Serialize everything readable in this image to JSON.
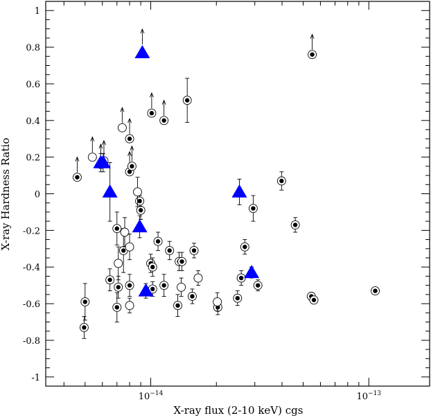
{
  "chart_data": {
    "type": "scatter",
    "title": "",
    "xlabel": "X-ray flux (2-10 keV) cgs",
    "ylabel": "X-ray Hardness Ratio",
    "x_scale": "log",
    "xlim": [
      3.3e-15,
      1.9e-13
    ],
    "ylim": [
      -1.05,
      1.05
    ],
    "x_major_ticks": [
      {
        "value": 1e-14,
        "base": "10",
        "exp": "−14"
      },
      {
        "value": 1e-13,
        "base": "10",
        "exp": "−13"
      }
    ],
    "y_ticks": [
      {
        "value": -1,
        "label": "-1"
      },
      {
        "value": -0.8,
        "label": "-0.8"
      },
      {
        "value": -0.6,
        "label": "-0.6"
      },
      {
        "value": -0.4,
        "label": "-0.4"
      },
      {
        "value": -0.2,
        "label": "-0.2"
      },
      {
        "value": 0,
        "label": "0"
      },
      {
        "value": 0.2,
        "label": "0.2"
      },
      {
        "value": 0.4,
        "label": "0.4"
      },
      {
        "value": 0.6,
        "label": "0.6"
      },
      {
        "value": 0.8,
        "label": "0.8"
      },
      {
        "value": 1,
        "label": "1"
      }
    ],
    "grid": false,
    "series": [
      {
        "name": "circled-dot",
        "marker": "circle-dot",
        "color": "#000000",
        "points": [
          {
            "x": 4.6e-15,
            "y": 0.09,
            "lower_limit": true
          },
          {
            "x": 5.9e-15,
            "y": 0.16,
            "lower_limit": true
          },
          {
            "x": 6.1e-15,
            "y": 0.18,
            "lower_limit": true
          },
          {
            "x": 8e-15,
            "y": 0.3,
            "lower_limit": true
          },
          {
            "x": 8e-15,
            "y": 0.12,
            "lower_limit": true
          },
          {
            "x": 8.2e-15,
            "y": 0.15,
            "lower_limit": true
          },
          {
            "x": 1.01e-14,
            "y": 0.44,
            "lower_limit": true
          },
          {
            "x": 1.15e-14,
            "y": 0.4,
            "lower_limit": true
          },
          {
            "x": 5.5e-14,
            "y": 0.76,
            "lower_limit": true
          },
          {
            "x": 1.47e-14,
            "y": 0.51,
            "err": 0.12
          },
          {
            "x": 3.98e-14,
            "y": 0.07,
            "err": 0.05
          },
          {
            "x": 2.95e-14,
            "y": -0.08,
            "err": 0.07
          },
          {
            "x": 4.6e-14,
            "y": -0.17,
            "err": 0.04
          },
          {
            "x": 9e-15,
            "y": -0.09,
            "err": 0.05
          },
          {
            "x": 7e-15,
            "y": -0.19,
            "err": 0.09
          },
          {
            "x": 7.5e-15,
            "y": -0.31,
            "err": 0.12
          },
          {
            "x": 1.08e-14,
            "y": -0.26,
            "err": 0.05
          },
          {
            "x": 1.22e-14,
            "y": -0.31,
            "err": 0.05
          },
          {
            "x": 1.58e-14,
            "y": -0.31,
            "err": 0.04
          },
          {
            "x": 2.7e-14,
            "y": -0.29,
            "err": 0.04
          },
          {
            "x": 1e-14,
            "y": -0.38,
            "err": 0.05
          },
          {
            "x": 1.02e-14,
            "y": -0.4,
            "err": 0.05
          },
          {
            "x": 1.35e-14,
            "y": -0.37,
            "err": 0.05
          },
          {
            "x": 1.39e-14,
            "y": -0.37,
            "err": 0.05
          },
          {
            "x": 6.5e-15,
            "y": -0.47,
            "err": 0.06
          },
          {
            "x": 7.1e-15,
            "y": -0.51,
            "err": 0.06
          },
          {
            "x": 8e-15,
            "y": -0.5,
            "err": 0.06
          },
          {
            "x": 1.02e-14,
            "y": -0.52,
            "err": 0.04
          },
          {
            "x": 1.15e-14,
            "y": -0.5,
            "err": 0.06
          },
          {
            "x": 1.55e-14,
            "y": -0.56,
            "err": 0.04
          },
          {
            "x": 2.6e-14,
            "y": -0.46,
            "err": 0.04
          },
          {
            "x": 3.1e-14,
            "y": -0.5,
            "err": 0.03
          },
          {
            "x": 5e-15,
            "y": -0.59,
            "err": 0.1
          },
          {
            "x": 4.95e-15,
            "y": -0.73,
            "err": 0.06
          },
          {
            "x": 7e-15,
            "y": -0.62,
            "err": 0.08
          },
          {
            "x": 1.33e-14,
            "y": -0.61,
            "err": 0.06
          },
          {
            "x": 2.03e-14,
            "y": -0.62,
            "err": 0.04
          },
          {
            "x": 2.5e-14,
            "y": -0.57,
            "err": 0.04
          },
          {
            "x": 5.45e-14,
            "y": -0.56,
            "err": 0.02
          },
          {
            "x": 5.6e-14,
            "y": -0.58,
            "err": 0.02
          },
          {
            "x": 1.07e-13,
            "y": -0.53,
            "err": 0.02
          },
          {
            "x": 8.9e-15,
            "y": -0.04,
            "err": 0.03
          }
        ]
      },
      {
        "name": "open-circle",
        "marker": "circle",
        "color": "#000000",
        "points": [
          {
            "x": 5.4e-15,
            "y": 0.2,
            "lower_limit": true
          },
          {
            "x": 7.4e-15,
            "y": 0.36,
            "lower_limit": true
          },
          {
            "x": 8.7e-15,
            "y": 0.01,
            "err": 0.08
          },
          {
            "x": 7.1e-15,
            "y": -0.38,
            "err": 0.09
          },
          {
            "x": 7.6e-15,
            "y": -0.21,
            "err": 0.08
          },
          {
            "x": 8e-15,
            "y": -0.29,
            "err": 0.07
          },
          {
            "x": 1.38e-14,
            "y": -0.51,
            "err": 0.05
          },
          {
            "x": 1.65e-14,
            "y": -0.46,
            "err": 0.04
          },
          {
            "x": 8e-15,
            "y": -0.61,
            "err": 0.04
          },
          {
            "x": 2.02e-14,
            "y": -0.59,
            "err": 0.05
          }
        ]
      },
      {
        "name": "triangle",
        "marker": "triangle",
        "color": "#0000ff",
        "points": [
          {
            "x": 9.15e-15,
            "y": 0.77,
            "lower_limit": true
          },
          {
            "x": 5.9e-15,
            "y": 0.17,
            "err": 0.05
          },
          {
            "x": 6.05e-15,
            "y": 0.17,
            "err": 0.05
          },
          {
            "x": 6.5e-15,
            "y": 0.01,
            "err": 0.16
          },
          {
            "x": 8.9e-15,
            "y": -0.18,
            "err": 0.06
          },
          {
            "x": 2.55e-14,
            "y": 0.01,
            "err": 0.07
          },
          {
            "x": 2.9e-14,
            "y": -0.43,
            "err": 0.03
          },
          {
            "x": 9.5e-15,
            "y": -0.53,
            "err": 0.04
          }
        ]
      }
    ]
  }
}
